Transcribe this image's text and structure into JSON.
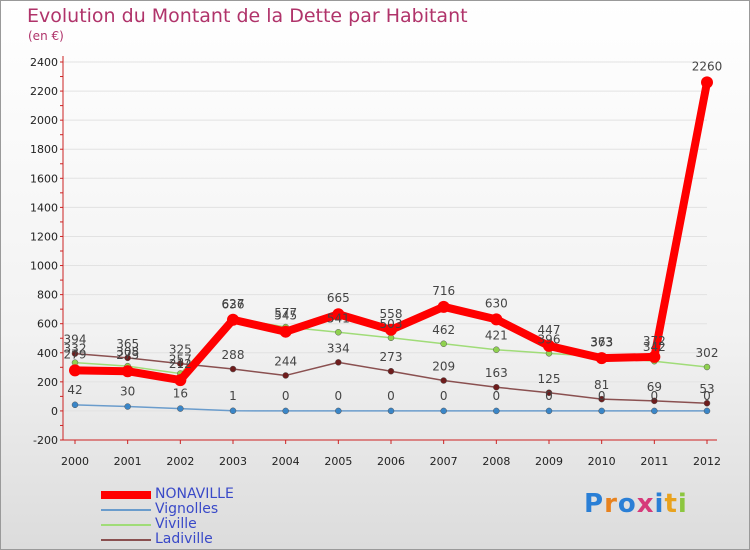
{
  "title": "Evolution du Montant de la Dette par Habitant",
  "unit": "(en €)",
  "brand": "Proxiti",
  "chart_data": {
    "type": "line",
    "title": "Evolution du Montant de la Dette par Habitant",
    "ylabel": "(en €)",
    "xlabel": "",
    "ylim": [
      -200,
      2400
    ],
    "yticks": [
      -200,
      0,
      200,
      400,
      600,
      800,
      1000,
      1200,
      1400,
      1600,
      1800,
      2000,
      2200,
      2400
    ],
    "categories": [
      "2000",
      "2001",
      "2002",
      "2003",
      "2004",
      "2005",
      "2006",
      "2007",
      "2008",
      "2009",
      "2010",
      "2011",
      "2012"
    ],
    "series": [
      {
        "name": "NONAVILLE",
        "color": "#ff0000",
        "marker": "#ff0000",
        "values": [
          279,
          273,
          212,
          627,
          545,
          665,
          558,
          716,
          630,
          447,
          363,
          372,
          2260
        ]
      },
      {
        "name": "Vignolles",
        "color": "#6a9ccc",
        "marker": "#3a86c8",
        "values": [
          42,
          30,
          16,
          1,
          0,
          0,
          0,
          0,
          0,
          0,
          0,
          0,
          0
        ]
      },
      {
        "name": "Viville",
        "color": "#a0dc78",
        "marker": "#8fd14f",
        "values": [
          332,
          308,
          257,
          636,
          577,
          541,
          503,
          462,
          421,
          396,
          373,
          342,
          302
        ]
      },
      {
        "name": "Ladiville",
        "color": "#8a5050",
        "marker": "#6e1c1c",
        "values": [
          394,
          365,
          325,
          288,
          244,
          334,
          273,
          209,
          163,
          125,
          81,
          69,
          53
        ]
      }
    ]
  }
}
